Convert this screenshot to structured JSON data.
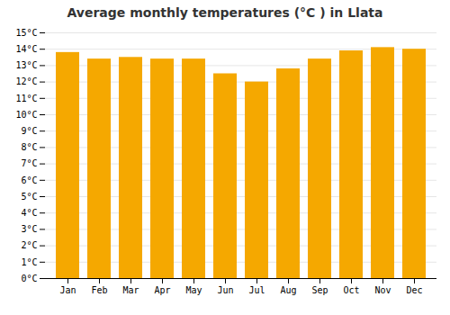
{
  "chart_data": {
    "type": "bar",
    "title": "Average monthly temperatures (°C ) in Llata",
    "categories": [
      "Jan",
      "Feb",
      "Mar",
      "Apr",
      "May",
      "Jun",
      "Jul",
      "Aug",
      "Sep",
      "Oct",
      "Nov",
      "Dec"
    ],
    "values": [
      13.8,
      13.4,
      13.5,
      13.4,
      13.4,
      12.5,
      12.0,
      12.8,
      13.4,
      13.9,
      14.1,
      14.0
    ],
    "color": "#F5A800",
    "ylim": [
      0,
      15
    ],
    "yticks": [
      {
        "value": 0,
        "label": "0°C"
      },
      {
        "value": 1,
        "label": "1°C"
      },
      {
        "value": 2,
        "label": "2°C"
      },
      {
        "value": 3,
        "label": "3°C"
      },
      {
        "value": 4,
        "label": "4°C"
      },
      {
        "value": 5,
        "label": "5°C"
      },
      {
        "value": 6,
        "label": "6°C"
      },
      {
        "value": 7,
        "label": "7°C"
      },
      {
        "value": 8,
        "label": "8°C"
      },
      {
        "value": 9,
        "label": "9°C"
      },
      {
        "value": 10,
        "label": "10°C"
      },
      {
        "value": 11,
        "label": "11°C"
      },
      {
        "value": 12,
        "label": "12°C"
      },
      {
        "value": 13,
        "label": "13°C"
      },
      {
        "value": 14,
        "label": "14°C"
      },
      {
        "value": 15,
        "label": "15°C"
      }
    ],
    "grid": true
  }
}
